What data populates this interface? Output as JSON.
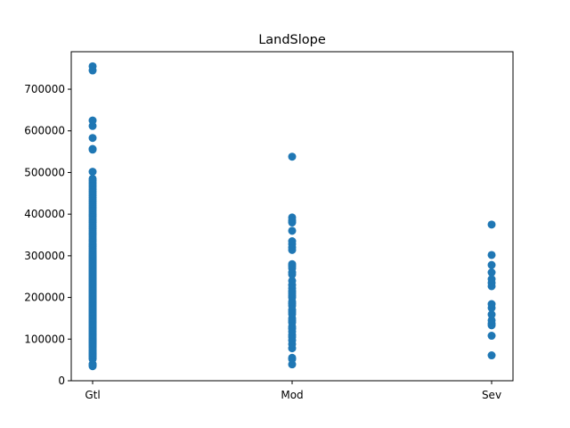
{
  "chart_data": {
    "type": "scatter",
    "title": "LandSlope",
    "xlabel": "",
    "ylabel": "",
    "categories": [
      "Gtl",
      "Mod",
      "Sev"
    ],
    "ylim": [
      0,
      790000
    ],
    "y_ticks": [
      0,
      100000,
      200000,
      300000,
      400000,
      500000,
      600000,
      700000
    ],
    "y_tick_labels": [
      "0",
      "100000",
      "200000",
      "300000",
      "400000",
      "500000",
      "600000",
      "700000"
    ],
    "grid": false,
    "marker_color": "#1f77b4",
    "points": [
      {
        "x": "Gtl",
        "values": [
          34900,
          37900,
          39300,
          40000,
          52000,
          55000,
          58500,
          60000,
          62383,
          64500,
          66500,
          68400,
          72500,
          75000,
          79000,
          82000,
          84500,
          87000,
          89500,
          91000,
          93000,
          95000,
          97000,
          99000,
          100000,
          102000,
          105000,
          107500,
          110000,
          112000,
          115000,
          118000,
          120000,
          122500,
          125000,
          127500,
          130000,
          132500,
          135000,
          137500,
          140000,
          142500,
          145000,
          147500,
          150000,
          152500,
          155000,
          157500,
          160000,
          162500,
          165000,
          167500,
          170000,
          172500,
          175000,
          177500,
          180000,
          182500,
          185000,
          187500,
          190000,
          192500,
          195000,
          197500,
          200000,
          202500,
          205000,
          207500,
          210000,
          212500,
          215000,
          217500,
          220000,
          222500,
          225000,
          227500,
          230000,
          232500,
          235000,
          237500,
          240000,
          242500,
          245000,
          247500,
          250000,
          252500,
          255000,
          257500,
          260000,
          262500,
          265000,
          267500,
          270000,
          272500,
          275000,
          277500,
          280000,
          282500,
          285000,
          287500,
          290000,
          292500,
          295000,
          297500,
          300000,
          303000,
          306000,
          310000,
          314000,
          318000,
          322000,
          326000,
          330000,
          335000,
          340000,
          345000,
          350000,
          355000,
          360000,
          365000,
          370000,
          375000,
          380000,
          385000,
          390000,
          395000,
          400000,
          405000,
          410000,
          415000,
          420000,
          425000,
          430000,
          435000,
          440000,
          445000,
          450000,
          455000,
          460000,
          465000,
          470000,
          475000,
          480000,
          485000,
          501837,
          555000,
          556581,
          582933,
          611657,
          625000,
          745000,
          755000
        ]
      },
      {
        "x": "Mod",
        "values": [
          39300,
          52000,
          55000,
          78000,
          88000,
          97000,
          105000,
          110000,
          118000,
          125000,
          130000,
          140000,
          145000,
          150000,
          160000,
          165000,
          170000,
          180000,
          185000,
          190000,
          200000,
          205000,
          210000,
          215000,
          222000,
          230000,
          240000,
          255000,
          260000,
          270000,
          275000,
          280000,
          314000,
          320000,
          328000,
          335000,
          360000,
          380000,
          385000,
          392000,
          538000
        ]
      },
      {
        "x": "Sev",
        "values": [
          61000,
          108000,
          133000,
          137000,
          145000,
          159000,
          175000,
          184000,
          227000,
          235000,
          244000,
          260000,
          278000,
          302000,
          375000
        ]
      }
    ]
  }
}
